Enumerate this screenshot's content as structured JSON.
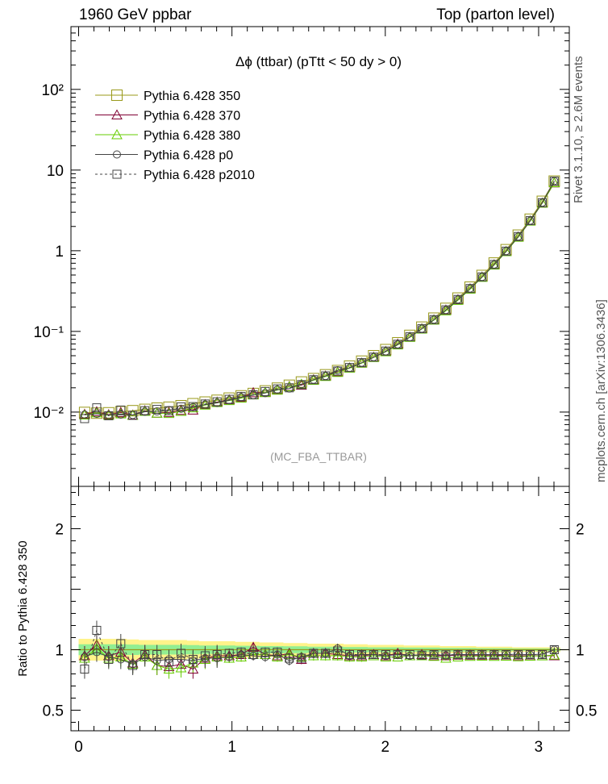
{
  "header": {
    "left": "1960 GeV ppbar",
    "right": "Top (parton level)"
  },
  "side_labels": {
    "rivet": "Rivet 3.1.10, ≥ 2.6M events",
    "mcplots": "mcplots.cern.ch [arXiv:1306.3436]"
  },
  "chart_data": [
    {
      "type": "line",
      "title": "Δϕ (ttbar) (pTtt < 50 dy > 0)",
      "watermark": "(MC_FBA_TTBAR)",
      "xlim": [
        -0.05,
        3.2
      ],
      "ylim": [
        0.0012,
        600
      ],
      "yscale": "log",
      "ytick_values": [
        0.01,
        0.1,
        1,
        10,
        100
      ],
      "ytick_labels": [
        "10⁻²",
        "10⁻¹",
        "1",
        "10",
        "10²"
      ],
      "legend_position": "top-left",
      "x": [
        0.039,
        0.118,
        0.196,
        0.275,
        0.353,
        0.432,
        0.511,
        0.589,
        0.668,
        0.746,
        0.825,
        0.903,
        0.982,
        1.06,
        1.139,
        1.217,
        1.296,
        1.374,
        1.453,
        1.532,
        1.61,
        1.689,
        1.767,
        1.846,
        1.924,
        2.003,
        2.081,
        2.16,
        2.238,
        2.317,
        2.395,
        2.474,
        2.553,
        2.631,
        2.71,
        2.788,
        2.867,
        2.945,
        3.024,
        3.102
      ],
      "series": [
        {
          "name": "Pythia 6.428 350",
          "color": "#99991a",
          "marker": "square-open",
          "dash": "solid",
          "values": [
            0.0099,
            0.0097,
            0.0098,
            0.0101,
            0.0104,
            0.0108,
            0.0112,
            0.0115,
            0.012,
            0.0127,
            0.0133,
            0.014,
            0.0149,
            0.0159,
            0.017,
            0.0183,
            0.0198,
            0.0215,
            0.0236,
            0.026,
            0.029,
            0.0327,
            0.0372,
            0.0428,
            0.05,
            0.0595,
            0.0722,
            0.0893,
            0.113,
            0.146,
            0.193,
            0.259,
            0.354,
            0.494,
            0.704,
            1.03,
            1.56,
            2.46,
            4.1,
            7.3
          ]
        },
        {
          "name": "Pythia 6.428 370",
          "color": "#800033",
          "marker": "triangle-open",
          "dash": "solid",
          "values": [
            0.0094,
            0.0101,
            0.0093,
            0.0099,
            0.0092,
            0.0104,
            0.0097,
            0.0099,
            0.0105,
            0.0106,
            0.0124,
            0.0133,
            0.0142,
            0.0152,
            0.0174,
            0.0175,
            0.0188,
            0.0208,
            0.0216,
            0.0252,
            0.028,
            0.0314,
            0.0353,
            0.0405,
            0.048,
            0.0565,
            0.0697,
            0.085,
            0.108,
            0.139,
            0.184,
            0.247,
            0.338,
            0.472,
            0.672,
            0.978,
            1.48,
            2.34,
            3.9,
            6.94
          ]
        },
        {
          "name": "Pythia 6.428 380",
          "color": "#66cc00",
          "marker": "triangle-open",
          "dash": "solid",
          "values": [
            0.0092,
            0.0098,
            0.0091,
            0.0095,
            0.0091,
            0.0102,
            0.0097,
            0.0096,
            0.0102,
            0.0113,
            0.0122,
            0.0131,
            0.0139,
            0.0149,
            0.0163,
            0.0175,
            0.0187,
            0.0206,
            0.0222,
            0.0248,
            0.0276,
            0.031,
            0.0351,
            0.0404,
            0.0475,
            0.056,
            0.068,
            0.0845,
            0.107,
            0.138,
            0.18,
            0.243,
            0.334,
            0.468,
            0.665,
            0.975,
            1.47,
            2.33,
            3.89,
            6.98
          ]
        },
        {
          "name": "Pythia 6.428 p0",
          "color": "#444444",
          "marker": "circle-open",
          "dash": "solid",
          "values": [
            0.0093,
            0.0095,
            0.0092,
            0.0093,
            0.0092,
            0.0101,
            0.0102,
            0.0106,
            0.011,
            0.0115,
            0.0124,
            0.013,
            0.014,
            0.0153,
            0.0162,
            0.0172,
            0.019,
            0.0196,
            0.0222,
            0.0252,
            0.028,
            0.033,
            0.0353,
            0.0409,
            0.048,
            0.0565,
            0.0691,
            0.0849,
            0.108,
            0.14,
            0.184,
            0.249,
            0.34,
            0.474,
            0.675,
            0.99,
            1.5,
            2.36,
            3.95,
            7.3
          ]
        },
        {
          "name": "Pythia 6.428 p2010",
          "color": "#444444",
          "marker": "square-open",
          "dash": "dashed",
          "values": [
            0.0083,
            0.0113,
            0.009,
            0.0106,
            0.0091,
            0.0104,
            0.0108,
            0.0104,
            0.0116,
            0.0117,
            0.0126,
            0.0134,
            0.0144,
            0.0156,
            0.0164,
            0.018,
            0.0194,
            0.02,
            0.0219,
            0.0252,
            0.0281,
            0.0323,
            0.0357,
            0.041,
            0.048,
            0.0571,
            0.0693,
            0.0857,
            0.108,
            0.14,
            0.185,
            0.249,
            0.34,
            0.474,
            0.676,
            0.989,
            1.5,
            2.36,
            3.94,
            7.3
          ]
        }
      ]
    },
    {
      "type": "line",
      "ylabel": "Ratio to Pythia 6.428 350",
      "xlim": [
        -0.05,
        3.2
      ],
      "ylim": [
        0.33,
        2.35
      ],
      "xtick_labels": [
        "0",
        "1",
        "2",
        "3"
      ],
      "ytick_labels": [
        "0.5",
        "1",
        "2"
      ],
      "x": [
        0.039,
        0.118,
        0.196,
        0.275,
        0.353,
        0.432,
        0.511,
        0.589,
        0.668,
        0.746,
        0.825,
        0.903,
        0.982,
        1.06,
        1.139,
        1.217,
        1.296,
        1.374,
        1.453,
        1.532,
        1.61,
        1.689,
        1.767,
        1.846,
        1.924,
        2.003,
        2.081,
        2.16,
        2.238,
        2.317,
        2.395,
        2.474,
        2.553,
        2.631,
        2.71,
        2.788,
        2.867,
        2.945,
        3.024,
        3.102
      ],
      "band_yellow_halfwidth": [
        0.09,
        0.09,
        0.09,
        0.09,
        0.085,
        0.08,
        0.08,
        0.08,
        0.08,
        0.075,
        0.07,
        0.07,
        0.07,
        0.065,
        0.065,
        0.06,
        0.06,
        0.055,
        0.055,
        0.05,
        0.05,
        0.05,
        0.045,
        0.045,
        0.04,
        0.04,
        0.04,
        0.035,
        0.035,
        0.035,
        0.03,
        0.03,
        0.03,
        0.025,
        0.025,
        0.025,
        0.02,
        0.02,
        0.02,
        0.02
      ],
      "band_green_halfwidth": [
        0.045,
        0.045,
        0.045,
        0.045,
        0.043,
        0.04,
        0.04,
        0.04,
        0.04,
        0.038,
        0.035,
        0.035,
        0.035,
        0.033,
        0.033,
        0.03,
        0.03,
        0.028,
        0.028,
        0.025,
        0.025,
        0.025,
        0.023,
        0.023,
        0.02,
        0.02,
        0.02,
        0.018,
        0.018,
        0.018,
        0.015,
        0.015,
        0.015,
        0.013,
        0.013,
        0.013,
        0.01,
        0.01,
        0.01,
        0.01
      ],
      "series": [
        {
          "name": "Pythia 6.428 370",
          "color": "#800033",
          "marker": "triangle-open",
          "dash": "solid",
          "values": [
            0.95,
            1.04,
            0.95,
            0.98,
            0.89,
            0.96,
            0.87,
            0.86,
            0.88,
            0.84,
            0.93,
            0.95,
            0.95,
            0.96,
            1.02,
            0.96,
            0.95,
            0.97,
            0.92,
            0.97,
            0.97,
            0.96,
            0.95,
            0.95,
            0.96,
            0.95,
            0.97,
            0.95,
            0.96,
            0.95,
            0.95,
            0.955,
            0.955,
            0.955,
            0.955,
            0.95,
            0.95,
            0.95,
            0.95,
            0.95
          ]
        },
        {
          "name": "Pythia 6.428 380",
          "color": "#66cc00",
          "marker": "triangle-open",
          "dash": "solid",
          "values": [
            0.93,
            1.01,
            0.93,
            0.94,
            0.88,
            0.94,
            0.87,
            0.84,
            0.85,
            0.89,
            0.92,
            0.94,
            0.93,
            0.94,
            0.96,
            0.96,
            0.94,
            0.96,
            0.94,
            0.95,
            0.95,
            0.95,
            0.94,
            0.94,
            0.95,
            0.94,
            0.94,
            0.95,
            0.95,
            0.945,
            0.93,
            0.94,
            0.945,
            0.947,
            0.945,
            0.947,
            0.942,
            0.947,
            0.949,
            0.956
          ]
        },
        {
          "name": "Pythia 6.428 p0",
          "color": "#444444",
          "marker": "circle-open",
          "dash": "solid",
          "values": [
            0.94,
            0.98,
            0.94,
            0.92,
            0.88,
            0.94,
            0.91,
            0.92,
            0.92,
            0.91,
            0.93,
            0.93,
            0.94,
            0.96,
            0.95,
            0.94,
            0.96,
            0.91,
            0.94,
            0.97,
            0.97,
            1.01,
            0.95,
            0.96,
            0.96,
            0.95,
            0.96,
            0.95,
            0.96,
            0.96,
            0.953,
            0.96,
            0.96,
            0.96,
            0.959,
            0.961,
            0.962,
            0.959,
            0.963,
            1.0
          ]
        },
        {
          "name": "Pythia 6.428 p2010",
          "color": "#444444",
          "marker": "square-open",
          "dash": "dashed",
          "values": [
            0.84,
            1.16,
            0.92,
            1.05,
            0.87,
            0.96,
            0.96,
            0.9,
            0.97,
            0.92,
            0.95,
            0.96,
            0.97,
            0.98,
            0.96,
            0.98,
            0.98,
            0.93,
            0.93,
            0.97,
            0.97,
            0.99,
            0.96,
            0.96,
            0.96,
            0.96,
            0.96,
            0.96,
            0.955,
            0.96,
            0.958,
            0.96,
            0.96,
            0.96,
            0.96,
            0.96,
            0.96,
            0.96,
            0.96,
            1.0
          ]
        }
      ]
    }
  ]
}
